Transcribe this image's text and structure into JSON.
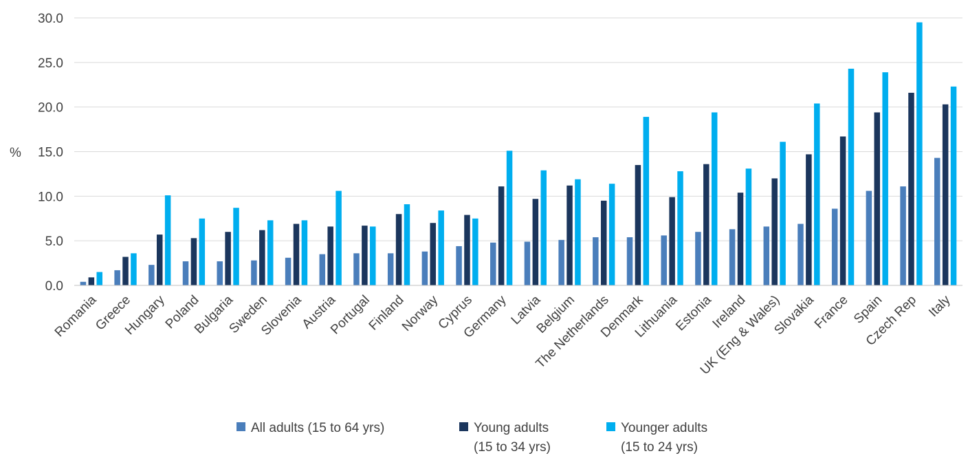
{
  "chart_data": {
    "type": "bar",
    "ylabel": "%",
    "ylim": [
      0,
      30
    ],
    "yticks": [
      "0.0",
      "5.0",
      "10.0",
      "15.0",
      "20.0",
      "25.0",
      "30.0"
    ],
    "ytick_values": [
      0,
      5,
      10,
      15,
      20,
      25,
      30
    ],
    "grid": true,
    "legend_position": "bottom",
    "highlight_category": "Portugal",
    "highlight_color": "#00A651",
    "categories": [
      "Romania",
      "Greece",
      "Hungary",
      "Poland",
      "Bulgaria",
      "Sweden",
      "Slovenia",
      "Austria",
      "Portugal",
      "Finland",
      "Norway",
      "Cyprus",
      "Germany",
      "Latvia",
      "Belgium",
      "The Netherlands",
      "Denmark",
      "Lithuania",
      "Estonia",
      "Ireland",
      "UK (Eng & Wales)",
      "Slovakia",
      "France",
      "Spain",
      "Czech Rep",
      "Italy"
    ],
    "series": [
      {
        "name": "All adults (15 to 64 yrs)",
        "legend_lines": [
          "All adults (15 to 64 yrs)"
        ],
        "color": "#4A7EBB",
        "values": [
          0.4,
          1.7,
          2.3,
          2.7,
          2.7,
          2.8,
          3.1,
          3.5,
          3.6,
          3.6,
          3.8,
          4.4,
          4.8,
          4.9,
          5.1,
          5.4,
          5.4,
          5.6,
          6.0,
          6.3,
          6.6,
          6.9,
          8.6,
          10.6,
          11.1,
          14.3
        ]
      },
      {
        "name": "Young adults (15 to 34 yrs)",
        "legend_lines": [
          "Young adults",
          "(15 to 34 yrs)"
        ],
        "color": "#1B365D",
        "values": [
          0.9,
          3.2,
          5.7,
          5.3,
          6.0,
          6.2,
          6.9,
          6.6,
          6.7,
          8.0,
          7.0,
          7.9,
          11.1,
          9.7,
          11.2,
          9.5,
          13.5,
          9.9,
          13.6,
          10.4,
          12.0,
          14.7,
          16.7,
          19.4,
          21.6,
          20.3
        ]
      },
      {
        "name": "Younger adults (15 to 24 yrs)",
        "legend_lines": [
          "Younger adults",
          "(15 to 24 yrs)"
        ],
        "color": "#00AEEF",
        "values": [
          1.5,
          3.6,
          10.1,
          7.5,
          8.7,
          7.3,
          7.3,
          10.6,
          6.6,
          9.1,
          8.4,
          7.5,
          15.1,
          12.9,
          11.9,
          11.4,
          18.9,
          12.8,
          19.4,
          13.1,
          16.1,
          20.4,
          24.3,
          23.9,
          29.5,
          22.3
        ]
      }
    ]
  }
}
